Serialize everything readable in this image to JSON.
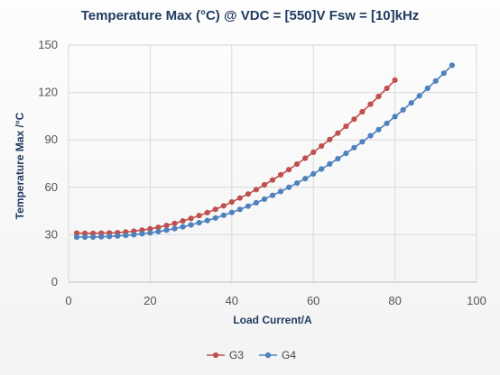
{
  "chart_data": {
    "type": "line",
    "title": "Temperature Max (°C) @ VDC = [550]V Fsw = [10]kHz",
    "xlabel": "Load Current/A",
    "ylabel": "Temperature Max /°C",
    "xlim": [
      0,
      100
    ],
    "ylim": [
      0,
      150
    ],
    "xticks": [
      "0",
      "20",
      "40",
      "60",
      "80",
      "100"
    ],
    "yticks": [
      "0",
      "30",
      "60",
      "90",
      "120",
      "150"
    ],
    "grid": true,
    "legend": "bottom",
    "series": [
      {
        "name": "G3",
        "color": "#c0504d",
        "x": [
          2,
          4,
          6,
          8,
          10,
          12,
          14,
          16,
          18,
          20,
          22,
          24,
          26,
          28,
          30,
          32,
          34,
          36,
          38,
          40,
          42,
          44,
          46,
          48,
          50,
          52,
          54,
          56,
          58,
          60,
          62,
          64,
          66,
          68,
          70,
          72,
          74,
          76,
          78,
          80
        ],
        "y": [
          31,
          30.9,
          30.9,
          31,
          31.1,
          31.3,
          31.7,
          32.2,
          32.9,
          33.7,
          34.7,
          35.9,
          37.2,
          38.7,
          40.3,
          42.1,
          44.0,
          46.1,
          48.3,
          50.7,
          53.2,
          55.8,
          58.6,
          61.6,
          64.6,
          67.9,
          71.2,
          74.7,
          78.4,
          82.2,
          86.1,
          90.2,
          94.3,
          98.6,
          103.1,
          107.8,
          112.6,
          117.5,
          122.6,
          127.8
        ]
      },
      {
        "name": "G4",
        "color": "#4f81bd",
        "x": [
          2,
          4,
          6,
          8,
          10,
          12,
          14,
          16,
          18,
          20,
          22,
          24,
          26,
          28,
          30,
          32,
          34,
          36,
          38,
          40,
          42,
          44,
          46,
          48,
          50,
          52,
          54,
          56,
          58,
          60,
          62,
          64,
          66,
          68,
          70,
          72,
          74,
          76,
          78,
          80,
          82,
          84,
          86,
          88,
          90,
          92,
          94
        ],
        "y": [
          28.5,
          28.5,
          28.6,
          28.7,
          28.9,
          29.2,
          29.6,
          30.0,
          30.6,
          31.2,
          32.0,
          32.9,
          33.9,
          35.0,
          36.2,
          37.6,
          39.0,
          40.6,
          42.3,
          44.1,
          46.0,
          48.1,
          50.2,
          52.5,
          54.9,
          57.4,
          60.0,
          62.7,
          65.5,
          68.5,
          71.6,
          74.8,
          78.1,
          81.5,
          85.1,
          88.8,
          92.6,
          96.5,
          100.5,
          104.7,
          109.0,
          113.4,
          117.9,
          122.6,
          127.3,
          132.2,
          137.2
        ]
      }
    ]
  }
}
